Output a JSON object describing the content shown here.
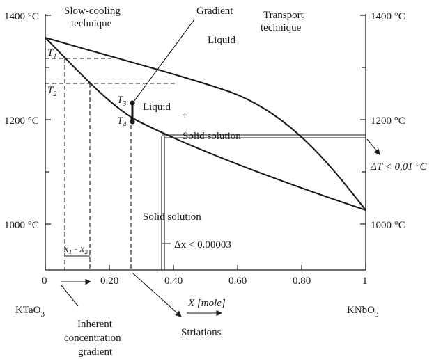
{
  "axis": {
    "y_left_labels": [
      "1400 °C",
      "1200 °C",
      "1000 °C"
    ],
    "y_right_labels": [
      "1400 °C",
      "1200 °C",
      "1000 °C"
    ],
    "x_tick_labels": [
      "0",
      "0.20",
      "0.40",
      "0.60",
      "0.80",
      "1"
    ],
    "x_axis_title": "X [mole]",
    "left_end_label": "KTaO",
    "left_end_sub": "3",
    "right_end_label": "KNbO",
    "right_end_sub": "3"
  },
  "labels": {
    "slow_cooling": [
      "Slow-cooling",
      "technique"
    ],
    "gradient": "Gradient",
    "transport": [
      "Transport",
      "technique"
    ],
    "liquid_top": "Liquid",
    "liquid_mid": "Liquid",
    "plus_mark": "+",
    "solid_solution_mid": "Solid solution",
    "solid_solution_low": "Solid solution",
    "delta_x": "Δx < 0.00003",
    "delta_t": "ΔT < 0,01 °C",
    "inherent": [
      "Inherent",
      "concentration",
      "gradient"
    ],
    "striations": "Striations",
    "x1_x2": "x₁ - x₂"
  },
  "temp_markers": {
    "T1": "T",
    "T1_sub": "1",
    "T2": "T",
    "T2_sub": "2",
    "T3": "T",
    "T3_sub": "3",
    "T4": "T",
    "T4_sub": "4"
  }
}
